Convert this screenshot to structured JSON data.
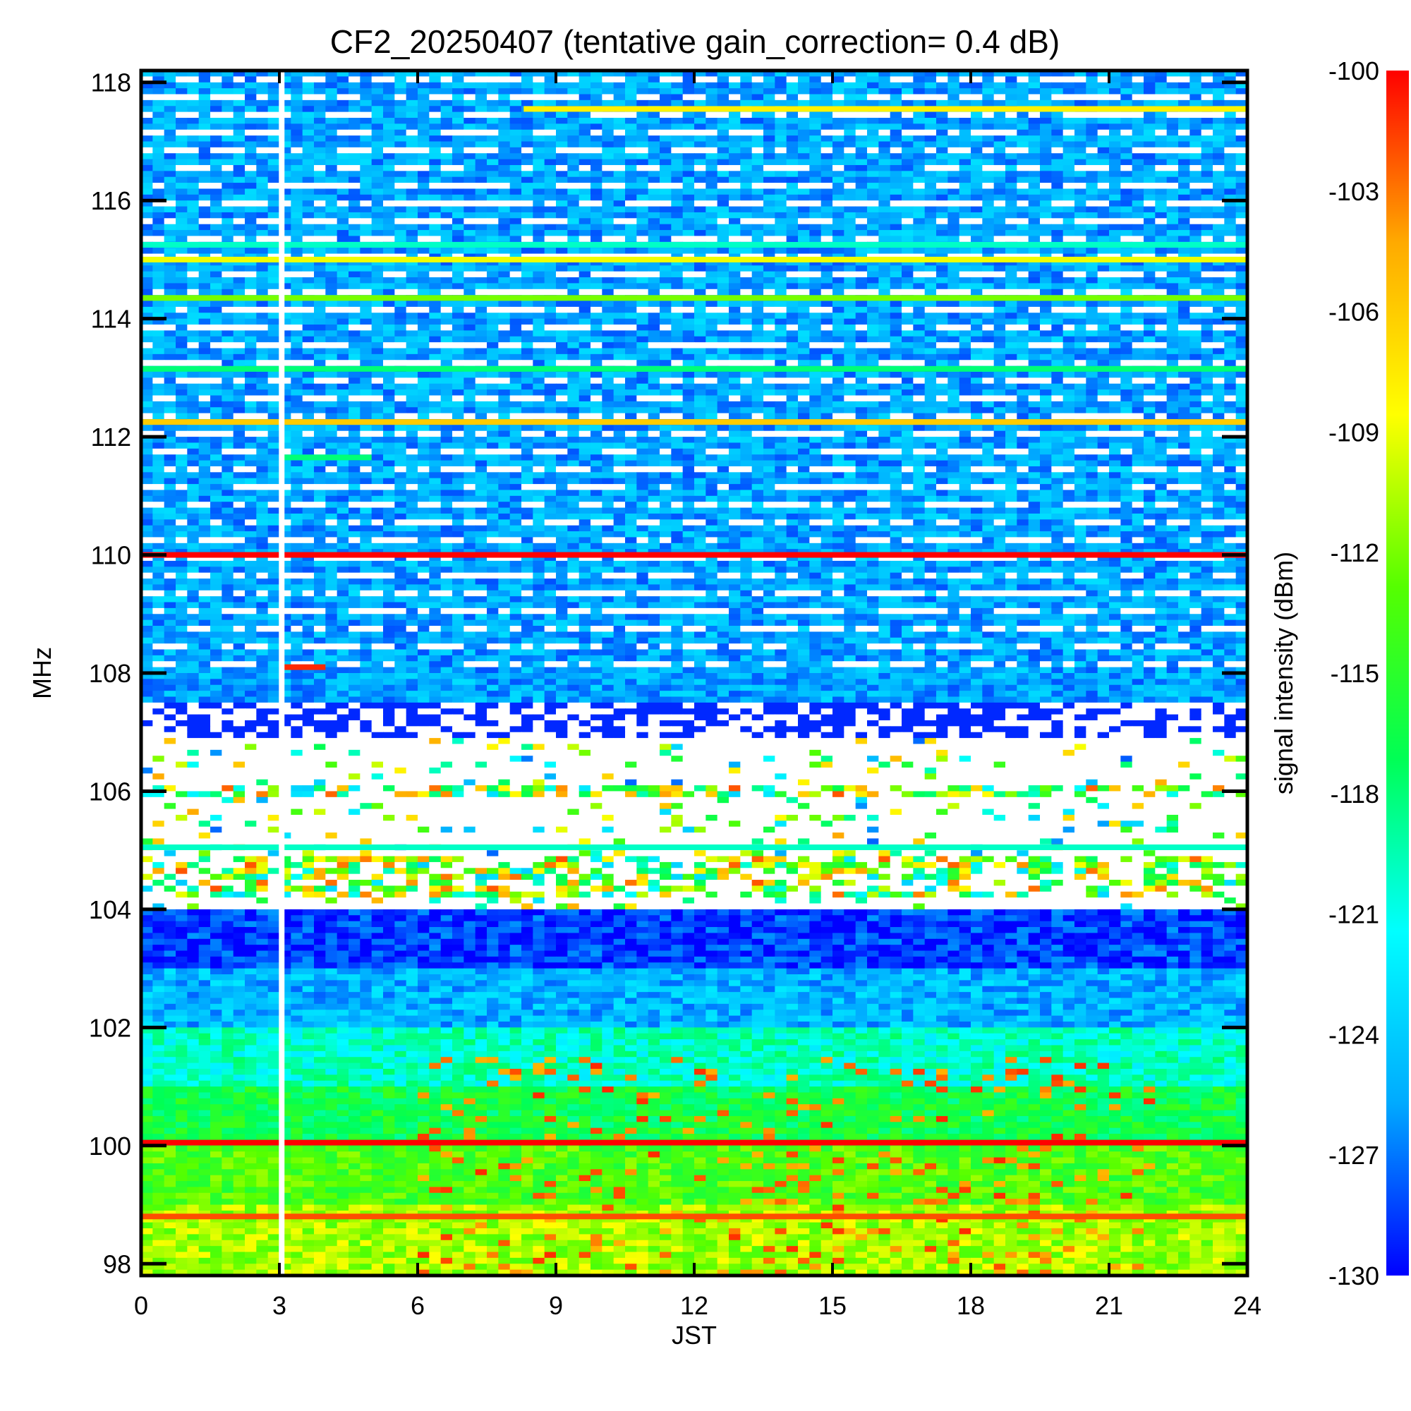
{
  "chart_data": {
    "type": "heatmap",
    "title": "CF2_20250407 (tentative gain_correction=  0.4 dB)",
    "xlabel": "JST",
    "ylabel": "MHz",
    "colorbar_label": "signal intensity (dBm)",
    "xlim": [
      0,
      24
    ],
    "ylim": [
      97.8,
      118.2
    ],
    "clim": [
      -130,
      -100
    ],
    "x_ticks": [
      0,
      3,
      6,
      9,
      12,
      15,
      18,
      21,
      24
    ],
    "x_tick_labels": [
      "0",
      "3",
      "6",
      "9",
      "12",
      "15",
      "18",
      "21",
      "24"
    ],
    "y_ticks": [
      98,
      100,
      102,
      104,
      106,
      108,
      110,
      112,
      114,
      116,
      118
    ],
    "y_tick_labels": [
      "98",
      "100",
      "102",
      "104",
      "106",
      "108",
      "110",
      "112",
      "114",
      "116",
      "118"
    ],
    "colorbar_ticks": [
      -100,
      -103,
      -106,
      -109,
      -112,
      -115,
      -118,
      -121,
      -124,
      -127,
      -130
    ],
    "colorbar_tick_labels": [
      "-100",
      "-103",
      "-106",
      "-109",
      "-112",
      "-115",
      "-118",
      "-121",
      "-124",
      "-127",
      "-130"
    ],
    "colormap": [
      "#0000ff",
      "#00aaff",
      "#00ffff",
      "#00ff55",
      "#55ff00",
      "#ffff00",
      "#ffaa00",
      "#ff0000"
    ],
    "data_gap_jst": 3.05,
    "persistent_lines": [
      {
        "freq_mhz": 110.0,
        "dbm": -100,
        "x_start": 0,
        "x_end": 24
      },
      {
        "freq_mhz": 100.05,
        "dbm": -100,
        "x_start": 0,
        "x_end": 24
      },
      {
        "freq_mhz": 98.8,
        "dbm": -102,
        "x_start": 0,
        "x_end": 24
      },
      {
        "freq_mhz": 112.25,
        "dbm": -106,
        "x_start": 0,
        "x_end": 24
      },
      {
        "freq_mhz": 115.0,
        "dbm": -109,
        "x_start": 0,
        "x_end": 24
      },
      {
        "freq_mhz": 114.35,
        "dbm": -112,
        "x_start": 0,
        "x_end": 24
      },
      {
        "freq_mhz": 117.55,
        "dbm": -108,
        "x_start": 8.3,
        "x_end": 24
      },
      {
        "freq_mhz": 105.05,
        "dbm": -120,
        "x_start": 0,
        "x_end": 24
      },
      {
        "freq_mhz": 113.15,
        "dbm": -118,
        "x_start": 0,
        "x_end": 24
      },
      {
        "freq_mhz": 115.25,
        "dbm": -120,
        "x_start": 0,
        "x_end": 24
      },
      {
        "freq_mhz": 111.65,
        "dbm": -118,
        "x_start": 3.1,
        "x_end": 5.0
      },
      {
        "freq_mhz": 108.1,
        "dbm": -101,
        "x_start": 3.1,
        "x_end": 4.0
      }
    ]
  }
}
